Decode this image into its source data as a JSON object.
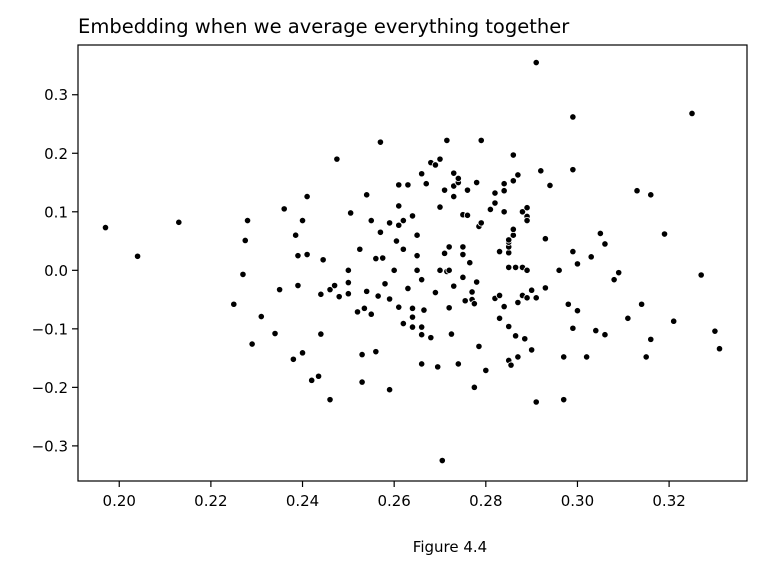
{
  "caption": "Figure 4.4",
  "chart_data": {
    "type": "scatter",
    "title": "Embedding when we average everything together",
    "xlabel": "",
    "ylabel": "",
    "xlim": [
      0.191,
      0.337
    ],
    "ylim": [
      -0.36,
      0.385
    ],
    "xticks": [
      0.2,
      0.22,
      0.24,
      0.26,
      0.28,
      0.3,
      0.32
    ],
    "xtick_labels": [
      "0.20",
      "0.22",
      "0.24",
      "0.26",
      "0.28",
      "0.30",
      "0.32"
    ],
    "yticks": [
      -0.3,
      -0.2,
      -0.1,
      0.0,
      0.1,
      0.2,
      0.3
    ],
    "ytick_labels": [
      "−0.3",
      "−0.2",
      "−0.1",
      "0.0",
      "0.1",
      "0.2",
      "0.3"
    ],
    "grid": false,
    "marker_color": "#000000",
    "marker_edge_color": "#ffffff",
    "points": [
      [
        0.197,
        0.073
      ],
      [
        0.204,
        0.024
      ],
      [
        0.213,
        0.082
      ],
      [
        0.225,
        -0.058
      ],
      [
        0.227,
        -0.007
      ],
      [
        0.228,
        0.085
      ],
      [
        0.2275,
        0.051
      ],
      [
        0.229,
        -0.126
      ],
      [
        0.231,
        -0.079
      ],
      [
        0.234,
        -0.108
      ],
      [
        0.235,
        -0.033
      ],
      [
        0.236,
        0.105
      ],
      [
        0.238,
        -0.152
      ],
      [
        0.2385,
        0.06
      ],
      [
        0.239,
        0.025
      ],
      [
        0.239,
        -0.026
      ],
      [
        0.24,
        0.085
      ],
      [
        0.24,
        -0.141
      ],
      [
        0.241,
        0.027
      ],
      [
        0.241,
        0.126
      ],
      [
        0.242,
        -0.188
      ],
      [
        0.2435,
        -0.181
      ],
      [
        0.244,
        -0.041
      ],
      [
        0.244,
        -0.109
      ],
      [
        0.2445,
        0.018
      ],
      [
        0.246,
        -0.033
      ],
      [
        0.246,
        -0.221
      ],
      [
        0.247,
        -0.026
      ],
      [
        0.2475,
        0.19
      ],
      [
        0.248,
        -0.045
      ],
      [
        0.25,
        -0.04
      ],
      [
        0.25,
        0.0
      ],
      [
        0.25,
        -0.021
      ],
      [
        0.2505,
        0.098
      ],
      [
        0.252,
        -0.071
      ],
      [
        0.2525,
        0.036
      ],
      [
        0.253,
        -0.144
      ],
      [
        0.253,
        -0.191
      ],
      [
        0.2535,
        -0.065
      ],
      [
        0.254,
        0.129
      ],
      [
        0.254,
        -0.036
      ],
      [
        0.255,
        0.085
      ],
      [
        0.255,
        -0.075
      ],
      [
        0.256,
        -0.139
      ],
      [
        0.256,
        0.02
      ],
      [
        0.2565,
        -0.044
      ],
      [
        0.257,
        0.219
      ],
      [
        0.257,
        0.065
      ],
      [
        0.2575,
        0.021
      ],
      [
        0.258,
        -0.023
      ],
      [
        0.259,
        0.081
      ],
      [
        0.259,
        -0.049
      ],
      [
        0.259,
        -0.204
      ],
      [
        0.26,
        0.0
      ],
      [
        0.2605,
        0.05
      ],
      [
        0.261,
        -0.063
      ],
      [
        0.261,
        0.077
      ],
      [
        0.261,
        0.11
      ],
      [
        0.261,
        0.146
      ],
      [
        0.262,
        0.085
      ],
      [
        0.262,
        -0.091
      ],
      [
        0.262,
        0.036
      ],
      [
        0.263,
        -0.031
      ],
      [
        0.263,
        0.146
      ],
      [
        0.264,
        -0.08
      ],
      [
        0.264,
        0.093
      ],
      [
        0.264,
        -0.097
      ],
      [
        0.264,
        -0.065
      ],
      [
        0.265,
        0.06
      ],
      [
        0.265,
        0.0
      ],
      [
        0.265,
        0.025
      ],
      [
        0.266,
        -0.016
      ],
      [
        0.266,
        -0.16
      ],
      [
        0.266,
        -0.097
      ],
      [
        0.266,
        -0.11
      ],
      [
        0.2665,
        -0.068
      ],
      [
        0.266,
        0.165
      ],
      [
        0.267,
        0.148
      ],
      [
        0.268,
        0.184
      ],
      [
        0.268,
        -0.115
      ],
      [
        0.269,
        0.18
      ],
      [
        0.269,
        -0.038
      ],
      [
        0.2695,
        -0.165
      ],
      [
        0.27,
        0.0
      ],
      [
        0.27,
        0.108
      ],
      [
        0.27,
        0.19
      ],
      [
        0.2705,
        -0.325
      ],
      [
        0.271,
        0.137
      ],
      [
        0.271,
        0.029
      ],
      [
        0.2715,
        0.222
      ],
      [
        0.2715,
        -0.002
      ],
      [
        0.272,
        0.0
      ],
      [
        0.272,
        0.04
      ],
      [
        0.272,
        -0.064
      ],
      [
        0.2725,
        -0.109
      ],
      [
        0.273,
        0.144
      ],
      [
        0.273,
        0.126
      ],
      [
        0.273,
        0.166
      ],
      [
        0.273,
        -0.027
      ],
      [
        0.274,
        0.15
      ],
      [
        0.274,
        0.157
      ],
      [
        0.274,
        -0.16
      ],
      [
        0.275,
        0.027
      ],
      [
        0.275,
        0.095
      ],
      [
        0.275,
        0.04
      ],
      [
        0.275,
        -0.012
      ],
      [
        0.2755,
        -0.052
      ],
      [
        0.276,
        0.094
      ],
      [
        0.276,
        0.137
      ],
      [
        0.2765,
        0.013
      ],
      [
        0.277,
        -0.05
      ],
      [
        0.277,
        -0.037
      ],
      [
        0.2775,
        -0.057
      ],
      [
        0.2775,
        -0.2
      ],
      [
        0.278,
        -0.02
      ],
      [
        0.278,
        0.15
      ],
      [
        0.2785,
        0.075
      ],
      [
        0.2785,
        -0.13
      ],
      [
        0.279,
        0.222
      ],
      [
        0.279,
        0.081
      ],
      [
        0.28,
        -0.171
      ],
      [
        0.281,
        0.104
      ],
      [
        0.282,
        -0.048
      ],
      [
        0.282,
        0.115
      ],
      [
        0.282,
        0.132
      ],
      [
        0.283,
        -0.043
      ],
      [
        0.283,
        0.032
      ],
      [
        0.283,
        -0.082
      ],
      [
        0.284,
        0.1
      ],
      [
        0.284,
        0.148
      ],
      [
        0.284,
        -0.062
      ],
      [
        0.284,
        0.136
      ],
      [
        0.285,
        0.03
      ],
      [
        0.285,
        0.04
      ],
      [
        0.285,
        0.048
      ],
      [
        0.285,
        0.052
      ],
      [
        0.285,
        0.005
      ],
      [
        0.285,
        -0.096
      ],
      [
        0.285,
        -0.154
      ],
      [
        0.2855,
        -0.162
      ],
      [
        0.286,
        0.06
      ],
      [
        0.286,
        0.07
      ],
      [
        0.286,
        0.197
      ],
      [
        0.286,
        0.153
      ],
      [
        0.2865,
        -0.112
      ],
      [
        0.2865,
        0.005
      ],
      [
        0.287,
        0.163
      ],
      [
        0.287,
        -0.055
      ],
      [
        0.287,
        -0.148
      ],
      [
        0.288,
        -0.043
      ],
      [
        0.288,
        0.1
      ],
      [
        0.288,
        0.005
      ],
      [
        0.2885,
        -0.117
      ],
      [
        0.289,
        0.092
      ],
      [
        0.289,
        0.0
      ],
      [
        0.289,
        0.107
      ],
      [
        0.289,
        -0.047
      ],
      [
        0.289,
        0.085
      ],
      [
        0.29,
        -0.136
      ],
      [
        0.29,
        -0.034
      ],
      [
        0.291,
        -0.225
      ],
      [
        0.291,
        0.355
      ],
      [
        0.291,
        -0.047
      ],
      [
        0.292,
        0.17
      ],
      [
        0.293,
        -0.03
      ],
      [
        0.293,
        0.054
      ],
      [
        0.294,
        0.145
      ],
      [
        0.296,
        0.0
      ],
      [
        0.297,
        -0.148
      ],
      [
        0.297,
        -0.221
      ],
      [
        0.298,
        -0.058
      ],
      [
        0.299,
        0.032
      ],
      [
        0.299,
        -0.099
      ],
      [
        0.299,
        0.262
      ],
      [
        0.299,
        0.172
      ],
      [
        0.3,
        0.011
      ],
      [
        0.3,
        -0.069
      ],
      [
        0.302,
        -0.148
      ],
      [
        0.303,
        0.023
      ],
      [
        0.304,
        -0.103
      ],
      [
        0.305,
        0.063
      ],
      [
        0.306,
        0.045
      ],
      [
        0.306,
        -0.11
      ],
      [
        0.308,
        -0.016
      ],
      [
        0.309,
        -0.004
      ],
      [
        0.311,
        -0.082
      ],
      [
        0.313,
        0.136
      ],
      [
        0.314,
        -0.058
      ],
      [
        0.315,
        -0.148
      ],
      [
        0.316,
        0.129
      ],
      [
        0.316,
        -0.118
      ],
      [
        0.319,
        0.062
      ],
      [
        0.321,
        -0.087
      ],
      [
        0.325,
        0.268
      ],
      [
        0.327,
        -0.008
      ],
      [
        0.33,
        -0.104
      ],
      [
        0.331,
        -0.134
      ]
    ]
  }
}
